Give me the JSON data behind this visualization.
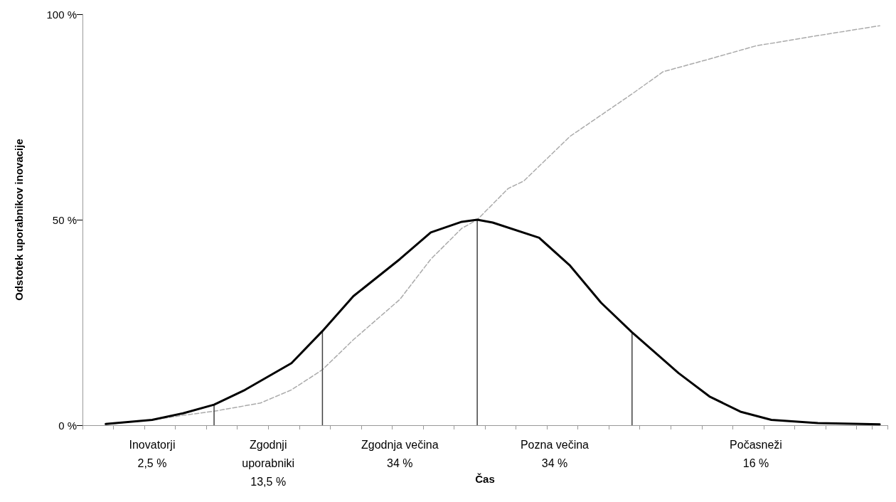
{
  "chart_data": {
    "type": "line",
    "xlabel": "Čas",
    "ylabel": "Odstotek uporabnikov inovacije",
    "categories": [
      null,
      null,
      null,
      null,
      null,
      null,
      null,
      null,
      null,
      null,
      null,
      null,
      null,
      null,
      null,
      null,
      null,
      null,
      null,
      null,
      null,
      null,
      null,
      null,
      null,
      null,
      null,
      null,
      null,
      null,
      null,
      null,
      null,
      null,
      null,
      null,
      null,
      null,
      null,
      null,
      null,
      null,
      null,
      null,
      null,
      null,
      null,
      null,
      null,
      null,
      null,
      null
    ],
    "ylim": [
      0,
      100
    ],
    "yticks": [
      {
        "value": 0,
        "label": "0 %"
      },
      {
        "value": 50,
        "label": "50 %"
      },
      {
        "value": 100,
        "label": "100 %"
      }
    ],
    "tick_labels": "y",
    "grid": false,
    "marker": "none",
    "series": [
      {
        "color": "#000000",
        "line_style": "solid",
        "values": [
          null,
          0.3,
          null,
          null,
          1.3,
          null,
          2.9,
          null,
          5.0,
          null,
          8.6,
          null,
          null,
          15.1,
          null,
          22.9,
          null,
          31.4,
          null,
          null,
          40.4,
          null,
          46.9,
          null,
          49.5,
          50,
          49.3,
          null,
          null,
          45.6,
          null,
          38.8,
          null,
          29.8,
          null,
          22.6,
          null,
          null,
          12.7,
          null,
          7.0,
          null,
          3.3,
          null,
          1.3,
          null,
          null,
          0.5,
          null,
          null,
          null,
          0.2
        ]
      },
      {
        "color": "#aaaaaa",
        "line_style": "dashed",
        "values": [
          null,
          0.2,
          null,
          null,
          1.3,
          null,
          2.4,
          null,
          3.4,
          null,
          null,
          5.4,
          null,
          8.6,
          null,
          13.5,
          null,
          20.8,
          null,
          null,
          30.6,
          null,
          40.4,
          null,
          47.9,
          50,
          null,
          57.6,
          59.4,
          null,
          null,
          70.3,
          null,
          null,
          null,
          80.6,
          null,
          86.0,
          null,
          null,
          89.1,
          null,
          null,
          92.3,
          null,
          null,
          null,
          94.8,
          null,
          null,
          null,
          97.2
        ]
      },
      {
        "type": "bar",
        "color": "#404040",
        "values": [
          null,
          null,
          null,
          null,
          null,
          null,
          null,
          null,
          5.0,
          null,
          null,
          null,
          null,
          null,
          null,
          22.9,
          null,
          null,
          null,
          null,
          null,
          null,
          null,
          null,
          null,
          50,
          null,
          null,
          null,
          null,
          null,
          null,
          null,
          null,
          null,
          22.6,
          null,
          null,
          null,
          null,
          null,
          null,
          null,
          null,
          null,
          null,
          null,
          null,
          null,
          null,
          null,
          null
        ]
      }
    ],
    "annotations": [
      "Inovatorji\n2,5 %",
      "Zgodnji\nuporabniki\n13,5 %",
      "Zgodnja večina\n34 %",
      "Pozna večina\n34 %",
      "Počasneži\n16 %"
    ]
  }
}
